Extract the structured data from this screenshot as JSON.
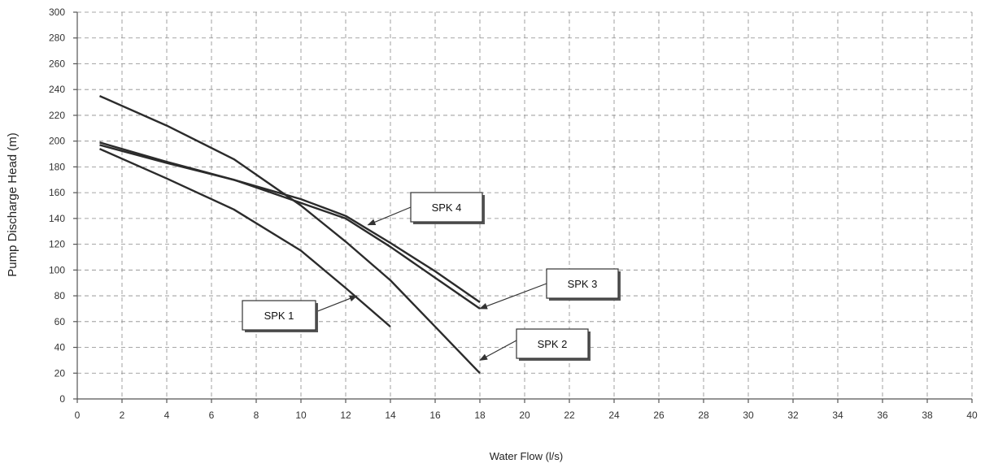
{
  "chart_data": {
    "type": "line",
    "xlabel": "Water Flow (l/s)",
    "ylabel": "Pump Discharge Head (m)",
    "xlim": [
      0,
      40
    ],
    "ylim": [
      0,
      300
    ],
    "x_ticks": [
      0,
      2,
      4,
      6,
      8,
      10,
      12,
      14,
      16,
      18,
      20,
      22,
      24,
      26,
      28,
      30,
      32,
      34,
      36,
      38,
      40
    ],
    "y_ticks": [
      0,
      20,
      40,
      60,
      80,
      100,
      120,
      140,
      160,
      180,
      200,
      220,
      240,
      260,
      280,
      300
    ],
    "grid": true,
    "series": [
      {
        "name": "SPK 1",
        "points": [
          [
            1,
            194
          ],
          [
            4,
            171
          ],
          [
            7,
            147
          ],
          [
            10,
            115
          ],
          [
            12,
            86
          ],
          [
            14,
            56
          ]
        ]
      },
      {
        "name": "SPK 2",
        "points": [
          [
            1,
            235
          ],
          [
            4,
            212
          ],
          [
            7,
            186
          ],
          [
            10,
            150
          ],
          [
            12,
            122
          ],
          [
            14,
            92
          ],
          [
            16,
            56
          ],
          [
            18,
            20
          ]
        ]
      },
      {
        "name": "SPK 3",
        "points": [
          [
            1,
            199
          ],
          [
            4,
            184
          ],
          [
            7,
            170
          ],
          [
            10,
            152
          ],
          [
            12,
            140
          ],
          [
            14,
            118
          ],
          [
            16,
            94
          ],
          [
            18,
            70
          ]
        ]
      },
      {
        "name": "SPK 4",
        "points": [
          [
            1,
            197
          ],
          [
            4,
            183
          ],
          [
            7,
            170
          ],
          [
            10,
            155
          ],
          [
            12,
            142
          ],
          [
            14,
            121
          ],
          [
            16,
            99
          ],
          [
            18,
            75
          ]
        ]
      }
    ],
    "annotations": [
      {
        "text": "SPK 1",
        "target": [
          12.5,
          80
        ]
      },
      {
        "text": "SPK 2",
        "target": [
          18,
          30
        ]
      },
      {
        "text": "SPK 3",
        "target": [
          18,
          70
        ]
      },
      {
        "text": "SPK 4",
        "target": [
          13,
          135
        ]
      }
    ]
  }
}
